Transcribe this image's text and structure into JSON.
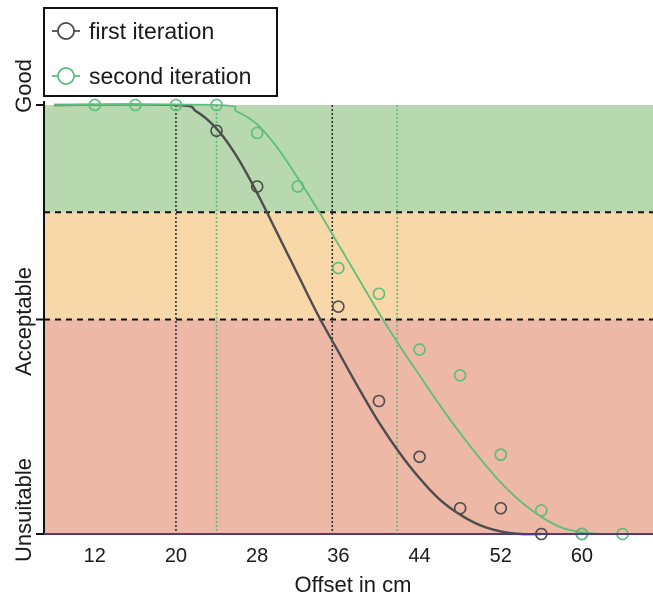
{
  "chart_data": {
    "type": "scatter",
    "title": "",
    "xlabel": "Offset in cm",
    "ylabel": "",
    "xlim": [
      7,
      67
    ],
    "ylim": [
      0,
      1
    ],
    "x_ticks": [
      12,
      20,
      28,
      36,
      44,
      52,
      60
    ],
    "y_categories": [
      {
        "label": "Good",
        "value": 1.0
      },
      {
        "label": "Acceptable",
        "value": 0.5
      },
      {
        "label": "Unsuitable",
        "value": 0.0
      }
    ],
    "bands": [
      {
        "from": 0.75,
        "to": 1.0,
        "color": "#b8d8b0"
      },
      {
        "from": 0.5,
        "to": 0.75,
        "color": "#f8d7a8"
      },
      {
        "from": 0.0,
        "to": 0.5,
        "color": "#eeb8a6"
      }
    ],
    "band_boundaries": [
      0.75,
      0.5
    ],
    "legend": {
      "position": "top-left"
    },
    "series": [
      {
        "name": "first iteration",
        "color": "#4d4d4d",
        "points": [
          [
            24,
            0.94
          ],
          [
            28,
            0.81
          ],
          [
            36,
            0.53
          ],
          [
            40,
            0.31
          ],
          [
            44,
            0.18
          ],
          [
            48,
            0.06
          ],
          [
            52,
            0.06
          ],
          [
            56,
            0.0
          ],
          [
            60,
            0.0
          ]
        ],
        "curve": [
          [
            8,
            1.0
          ],
          [
            20,
            1.0
          ],
          [
            22,
            0.985
          ],
          [
            24,
            0.945
          ],
          [
            26,
            0.88
          ],
          [
            28,
            0.795
          ],
          [
            30,
            0.7
          ],
          [
            32,
            0.605
          ],
          [
            34,
            0.51
          ],
          [
            36,
            0.425
          ],
          [
            38,
            0.34
          ],
          [
            40,
            0.26
          ],
          [
            42,
            0.19
          ],
          [
            44,
            0.13
          ],
          [
            46,
            0.08
          ],
          [
            48,
            0.045
          ],
          [
            50,
            0.02
          ],
          [
            52,
            0.006
          ],
          [
            54,
            0.0
          ],
          [
            56,
            0.0
          ]
        ],
        "drop_lines_x": [
          20,
          35.4
        ]
      },
      {
        "name": "second iteration",
        "color": "#5cbf7a",
        "points": [
          [
            12,
            1.0
          ],
          [
            16,
            1.0
          ],
          [
            20,
            1.0
          ],
          [
            24,
            1.0
          ],
          [
            28,
            0.935
          ],
          [
            32,
            0.81
          ],
          [
            36,
            0.62
          ],
          [
            40,
            0.56
          ],
          [
            44,
            0.43
          ],
          [
            48,
            0.37
          ],
          [
            52,
            0.185
          ],
          [
            52,
            0.185
          ],
          [
            56,
            0.055
          ],
          [
            60,
            0.0
          ],
          [
            64,
            0.0
          ]
        ],
        "curve": [
          [
            8,
            1.0
          ],
          [
            24,
            1.0
          ],
          [
            26,
            0.985
          ],
          [
            28,
            0.955
          ],
          [
            30,
            0.9
          ],
          [
            32,
            0.83
          ],
          [
            34,
            0.755
          ],
          [
            36,
            0.675
          ],
          [
            38,
            0.595
          ],
          [
            40,
            0.515
          ],
          [
            42,
            0.44
          ],
          [
            44,
            0.37
          ],
          [
            46,
            0.3
          ],
          [
            48,
            0.235
          ],
          [
            50,
            0.175
          ],
          [
            52,
            0.12
          ],
          [
            54,
            0.075
          ],
          [
            56,
            0.04
          ],
          [
            58,
            0.015
          ],
          [
            60,
            0.004
          ],
          [
            62,
            0.0
          ],
          [
            64,
            0.0
          ]
        ],
        "drop_lines_x": [
          24,
          41.8
        ]
      }
    ]
  }
}
